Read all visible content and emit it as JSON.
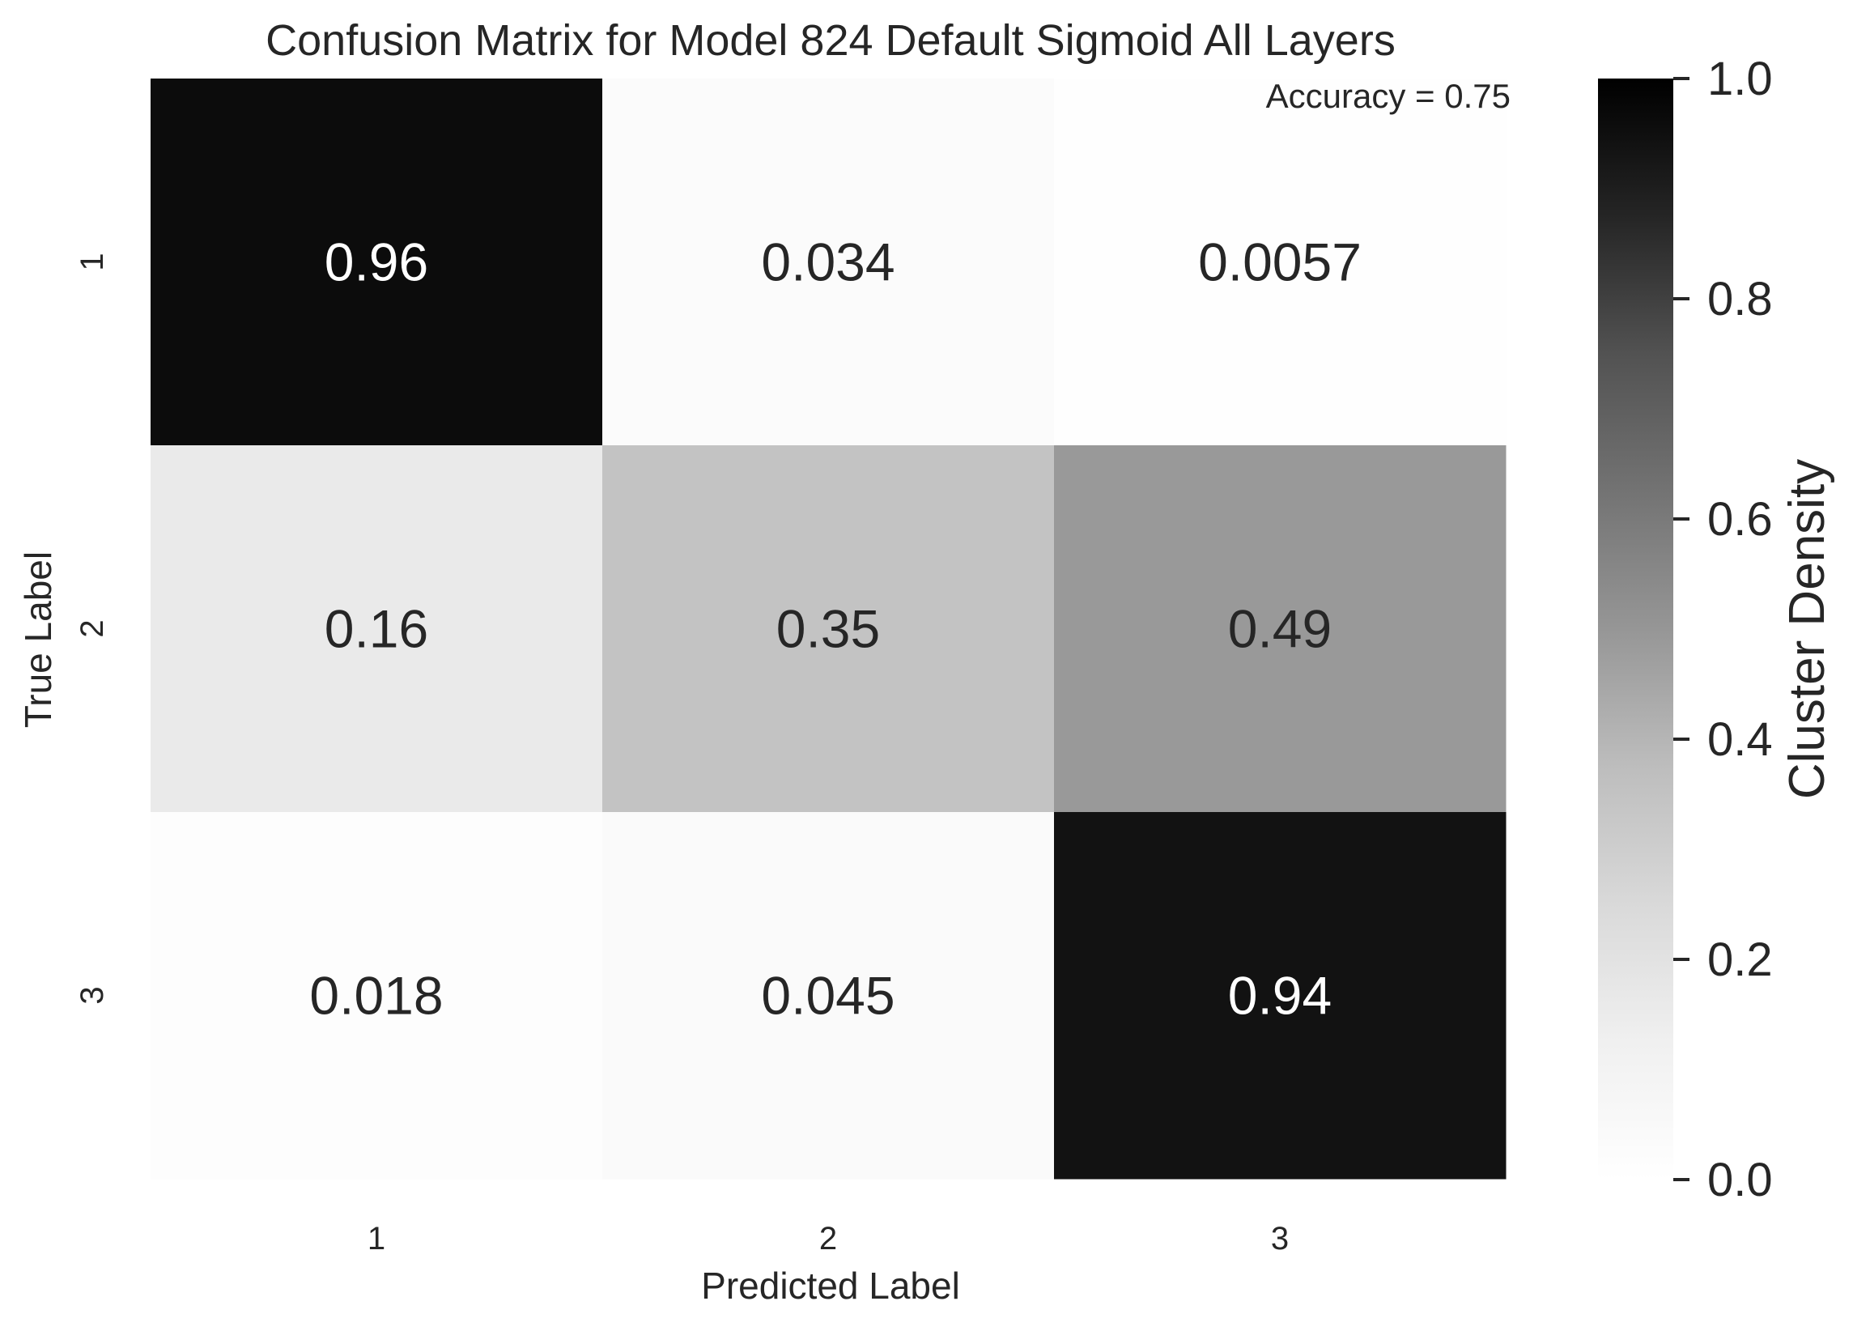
{
  "chart_data": {
    "type": "heatmap",
    "title": "Confusion Matrix for Model 824 Default Sigmoid All Layers",
    "annotation": "Accuracy = 0.75",
    "xlabel": "Predicted Label",
    "ylabel": "True Label",
    "x_categories": [
      "1",
      "2",
      "3"
    ],
    "y_categories": [
      "1",
      "2",
      "3"
    ],
    "values": [
      [
        0.96,
        0.034,
        0.0057
      ],
      [
        0.16,
        0.35,
        0.49
      ],
      [
        0.018,
        0.045,
        0.94
      ]
    ],
    "value_labels": [
      [
        "0.96",
        "0.034",
        "0.0057"
      ],
      [
        "0.16",
        "0.35",
        "0.49"
      ],
      [
        "0.018",
        "0.045",
        "0.94"
      ]
    ],
    "colormap": "Greys",
    "colorbar": {
      "label": "Cluster Density",
      "range": [
        0,
        1.0
      ],
      "ticks": [
        0.0,
        0.2,
        0.4,
        0.6,
        0.8,
        1.0
      ],
      "tick_labels": [
        "0.0",
        "0.2",
        "0.4",
        "0.6",
        "0.8",
        "1.0"
      ],
      "low_color": "#ffffff",
      "high_color": "#000000"
    },
    "grid": false
  }
}
